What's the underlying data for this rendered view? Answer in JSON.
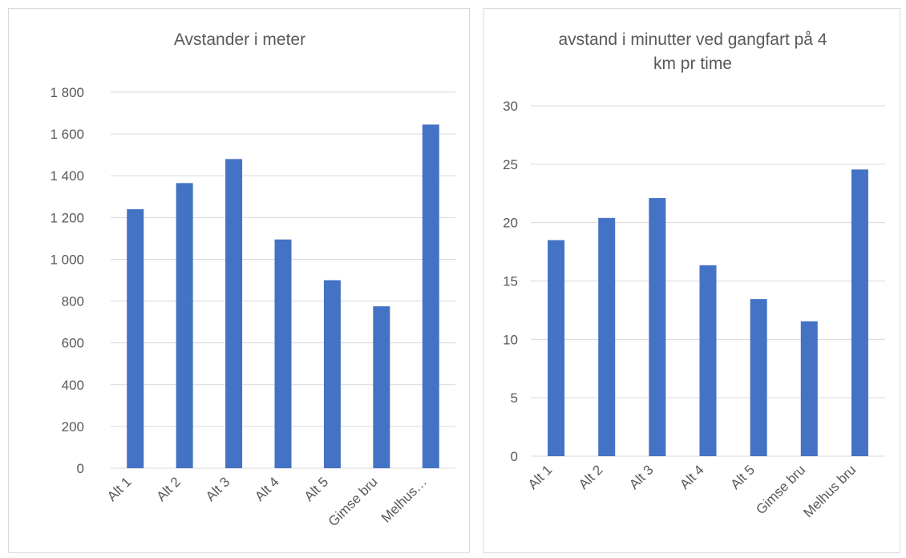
{
  "chart_data": [
    {
      "type": "bar",
      "title_lines": [
        "Avstander i meter"
      ],
      "categories": [
        "Alt 1",
        "Alt 2",
        "Alt 3",
        "Alt 4",
        "Alt 5",
        "Gimse bru",
        "Melhus…"
      ],
      "values": [
        1240,
        1365,
        1480,
        1095,
        900,
        775,
        1645
      ],
      "y_ticks": [
        "0",
        "200",
        "400",
        "600",
        "800",
        "1 000",
        "1 200",
        "1 400",
        "1 600",
        "1 800"
      ],
      "ylim": [
        0,
        1800
      ],
      "grid": true,
      "legend": "none"
    },
    {
      "type": "bar",
      "title_lines": [
        "avstand i minutter ved gangfart på 4",
        "km pr time"
      ],
      "categories": [
        "Alt 1",
        "Alt 2",
        "Alt 3",
        "Alt 4",
        "Alt 5",
        "Gimse bru",
        "Melhus bru"
      ],
      "values": [
        18.5,
        20.4,
        22.1,
        16.35,
        13.45,
        11.55,
        24.55
      ],
      "y_ticks": [
        "0",
        "5",
        "10",
        "15",
        "20",
        "25",
        "30"
      ],
      "ylim": [
        0,
        30
      ],
      "grid": true,
      "legend": "none"
    }
  ],
  "colors": {
    "bar": "#4472c4",
    "grid": "#d9d9d9",
    "text": "#595959"
  }
}
